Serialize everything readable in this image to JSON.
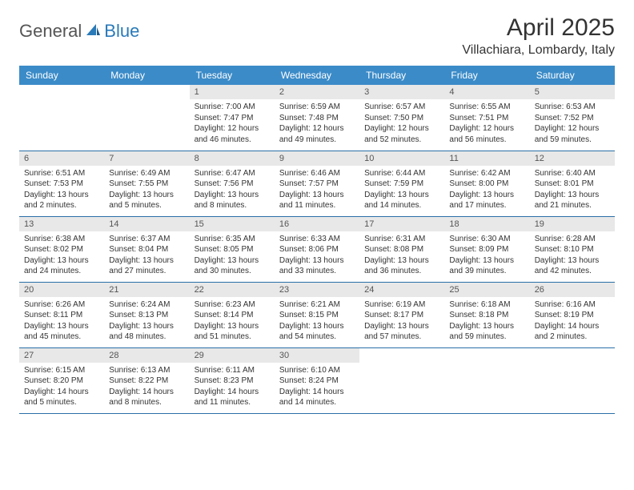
{
  "logo": {
    "general": "General",
    "blue": "Blue"
  },
  "title": "April 2025",
  "location": "Villachiara, Lombardy, Italy",
  "colors": {
    "header_bg": "#3b8bc8",
    "header_fg": "#ffffff",
    "daynum_bg": "#e8e8e8",
    "row_border": "#2a6fa8",
    "logo_blue": "#2a7ab8"
  },
  "weekdays": [
    "Sunday",
    "Monday",
    "Tuesday",
    "Wednesday",
    "Thursday",
    "Friday",
    "Saturday"
  ],
  "cells": [
    {
      "day": "",
      "sunrise": "",
      "sunset": "",
      "daylight": ""
    },
    {
      "day": "",
      "sunrise": "",
      "sunset": "",
      "daylight": ""
    },
    {
      "day": "1",
      "sunrise": "Sunrise: 7:00 AM",
      "sunset": "Sunset: 7:47 PM",
      "daylight": "Daylight: 12 hours and 46 minutes."
    },
    {
      "day": "2",
      "sunrise": "Sunrise: 6:59 AM",
      "sunset": "Sunset: 7:48 PM",
      "daylight": "Daylight: 12 hours and 49 minutes."
    },
    {
      "day": "3",
      "sunrise": "Sunrise: 6:57 AM",
      "sunset": "Sunset: 7:50 PM",
      "daylight": "Daylight: 12 hours and 52 minutes."
    },
    {
      "day": "4",
      "sunrise": "Sunrise: 6:55 AM",
      "sunset": "Sunset: 7:51 PM",
      "daylight": "Daylight: 12 hours and 56 minutes."
    },
    {
      "day": "5",
      "sunrise": "Sunrise: 6:53 AM",
      "sunset": "Sunset: 7:52 PM",
      "daylight": "Daylight: 12 hours and 59 minutes."
    },
    {
      "day": "6",
      "sunrise": "Sunrise: 6:51 AM",
      "sunset": "Sunset: 7:53 PM",
      "daylight": "Daylight: 13 hours and 2 minutes."
    },
    {
      "day": "7",
      "sunrise": "Sunrise: 6:49 AM",
      "sunset": "Sunset: 7:55 PM",
      "daylight": "Daylight: 13 hours and 5 minutes."
    },
    {
      "day": "8",
      "sunrise": "Sunrise: 6:47 AM",
      "sunset": "Sunset: 7:56 PM",
      "daylight": "Daylight: 13 hours and 8 minutes."
    },
    {
      "day": "9",
      "sunrise": "Sunrise: 6:46 AM",
      "sunset": "Sunset: 7:57 PM",
      "daylight": "Daylight: 13 hours and 11 minutes."
    },
    {
      "day": "10",
      "sunrise": "Sunrise: 6:44 AM",
      "sunset": "Sunset: 7:59 PM",
      "daylight": "Daylight: 13 hours and 14 minutes."
    },
    {
      "day": "11",
      "sunrise": "Sunrise: 6:42 AM",
      "sunset": "Sunset: 8:00 PM",
      "daylight": "Daylight: 13 hours and 17 minutes."
    },
    {
      "day": "12",
      "sunrise": "Sunrise: 6:40 AM",
      "sunset": "Sunset: 8:01 PM",
      "daylight": "Daylight: 13 hours and 21 minutes."
    },
    {
      "day": "13",
      "sunrise": "Sunrise: 6:38 AM",
      "sunset": "Sunset: 8:02 PM",
      "daylight": "Daylight: 13 hours and 24 minutes."
    },
    {
      "day": "14",
      "sunrise": "Sunrise: 6:37 AM",
      "sunset": "Sunset: 8:04 PM",
      "daylight": "Daylight: 13 hours and 27 minutes."
    },
    {
      "day": "15",
      "sunrise": "Sunrise: 6:35 AM",
      "sunset": "Sunset: 8:05 PM",
      "daylight": "Daylight: 13 hours and 30 minutes."
    },
    {
      "day": "16",
      "sunrise": "Sunrise: 6:33 AM",
      "sunset": "Sunset: 8:06 PM",
      "daylight": "Daylight: 13 hours and 33 minutes."
    },
    {
      "day": "17",
      "sunrise": "Sunrise: 6:31 AM",
      "sunset": "Sunset: 8:08 PM",
      "daylight": "Daylight: 13 hours and 36 minutes."
    },
    {
      "day": "18",
      "sunrise": "Sunrise: 6:30 AM",
      "sunset": "Sunset: 8:09 PM",
      "daylight": "Daylight: 13 hours and 39 minutes."
    },
    {
      "day": "19",
      "sunrise": "Sunrise: 6:28 AM",
      "sunset": "Sunset: 8:10 PM",
      "daylight": "Daylight: 13 hours and 42 minutes."
    },
    {
      "day": "20",
      "sunrise": "Sunrise: 6:26 AM",
      "sunset": "Sunset: 8:11 PM",
      "daylight": "Daylight: 13 hours and 45 minutes."
    },
    {
      "day": "21",
      "sunrise": "Sunrise: 6:24 AM",
      "sunset": "Sunset: 8:13 PM",
      "daylight": "Daylight: 13 hours and 48 minutes."
    },
    {
      "day": "22",
      "sunrise": "Sunrise: 6:23 AM",
      "sunset": "Sunset: 8:14 PM",
      "daylight": "Daylight: 13 hours and 51 minutes."
    },
    {
      "day": "23",
      "sunrise": "Sunrise: 6:21 AM",
      "sunset": "Sunset: 8:15 PM",
      "daylight": "Daylight: 13 hours and 54 minutes."
    },
    {
      "day": "24",
      "sunrise": "Sunrise: 6:19 AM",
      "sunset": "Sunset: 8:17 PM",
      "daylight": "Daylight: 13 hours and 57 minutes."
    },
    {
      "day": "25",
      "sunrise": "Sunrise: 6:18 AM",
      "sunset": "Sunset: 8:18 PM",
      "daylight": "Daylight: 13 hours and 59 minutes."
    },
    {
      "day": "26",
      "sunrise": "Sunrise: 6:16 AM",
      "sunset": "Sunset: 8:19 PM",
      "daylight": "Daylight: 14 hours and 2 minutes."
    },
    {
      "day": "27",
      "sunrise": "Sunrise: 6:15 AM",
      "sunset": "Sunset: 8:20 PM",
      "daylight": "Daylight: 14 hours and 5 minutes."
    },
    {
      "day": "28",
      "sunrise": "Sunrise: 6:13 AM",
      "sunset": "Sunset: 8:22 PM",
      "daylight": "Daylight: 14 hours and 8 minutes."
    },
    {
      "day": "29",
      "sunrise": "Sunrise: 6:11 AM",
      "sunset": "Sunset: 8:23 PM",
      "daylight": "Daylight: 14 hours and 11 minutes."
    },
    {
      "day": "30",
      "sunrise": "Sunrise: 6:10 AM",
      "sunset": "Sunset: 8:24 PM",
      "daylight": "Daylight: 14 hours and 14 minutes."
    },
    {
      "day": "",
      "sunrise": "",
      "sunset": "",
      "daylight": ""
    },
    {
      "day": "",
      "sunrise": "",
      "sunset": "",
      "daylight": ""
    },
    {
      "day": "",
      "sunrise": "",
      "sunset": "",
      "daylight": ""
    }
  ]
}
